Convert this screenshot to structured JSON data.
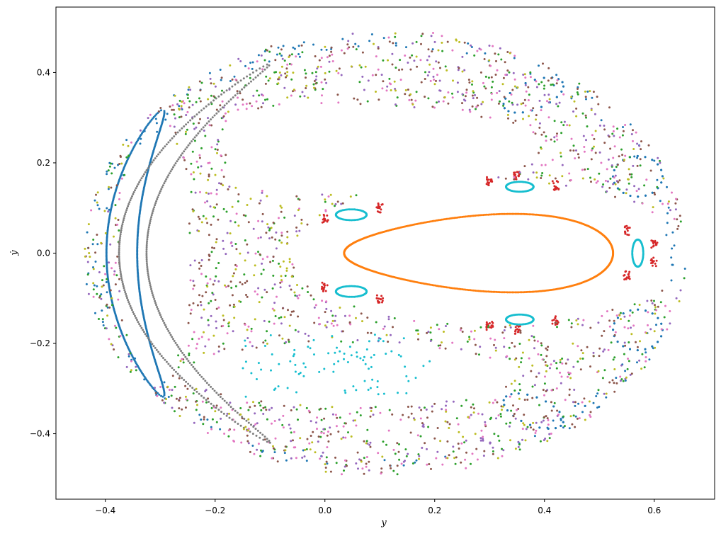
{
  "chart_data": {
    "type": "scatter",
    "title": "",
    "xlabel": "y",
    "ylabel": "ẏ",
    "xlim": [
      -0.49,
      0.71
    ],
    "ylim": [
      -0.545,
      0.545
    ],
    "grid": false,
    "legend": "none",
    "xticks": [
      -0.4,
      -0.2,
      0.0,
      0.2,
      0.4,
      0.6
    ],
    "xtick_labels": [
      "−0.4",
      "−0.2",
      "0.0",
      "0.2",
      "0.4",
      "0.6"
    ],
    "yticks": [
      -0.4,
      -0.2,
      0.0,
      0.2,
      0.4
    ],
    "ytick_labels": [
      "−0.4",
      "−0.2",
      "0.0",
      "0.2",
      "0.4"
    ],
    "series": [
      {
        "color": "#1f77b4",
        "kind": "outer-chaos",
        "seed": 11,
        "n": 180
      },
      {
        "color": "#1f77b4",
        "kind": "island-crescent",
        "cx": -0.285,
        "cy": 0.0,
        "ry": 0.318,
        "thick": 0.035,
        "n": 420
      },
      {
        "color": "#1f77b4",
        "kind": "island-arcs",
        "n": 240
      },
      {
        "color": "#ff7f0e",
        "kind": "ellipse",
        "cx": 0.28,
        "cy": 0.0,
        "rx": 0.245,
        "ry": 0.1,
        "n": 520
      },
      {
        "color": "#2ca02c",
        "kind": "chaos",
        "seed": 23,
        "n": 420
      },
      {
        "color": "#d62728",
        "kind": "resonance-chain",
        "n": 200
      },
      {
        "color": "#9467bd",
        "kind": "chaos",
        "seed": 37,
        "n": 380
      },
      {
        "color": "#8c564b",
        "kind": "chaos",
        "seed": 41,
        "n": 520
      },
      {
        "color": "#e377c2",
        "kind": "chaos",
        "seed": 53,
        "n": 380
      },
      {
        "color": "#7f7f7f",
        "kind": "crescent-gray",
        "n": 380
      },
      {
        "color": "#bcbd22",
        "kind": "chaos",
        "seed": 67,
        "n": 300
      },
      {
        "color": "#17becf",
        "kind": "small-islands",
        "n": 320
      },
      {
        "color": "#17becf",
        "kind": "cyan-scatter",
        "seed": 79,
        "n": 90
      }
    ]
  }
}
